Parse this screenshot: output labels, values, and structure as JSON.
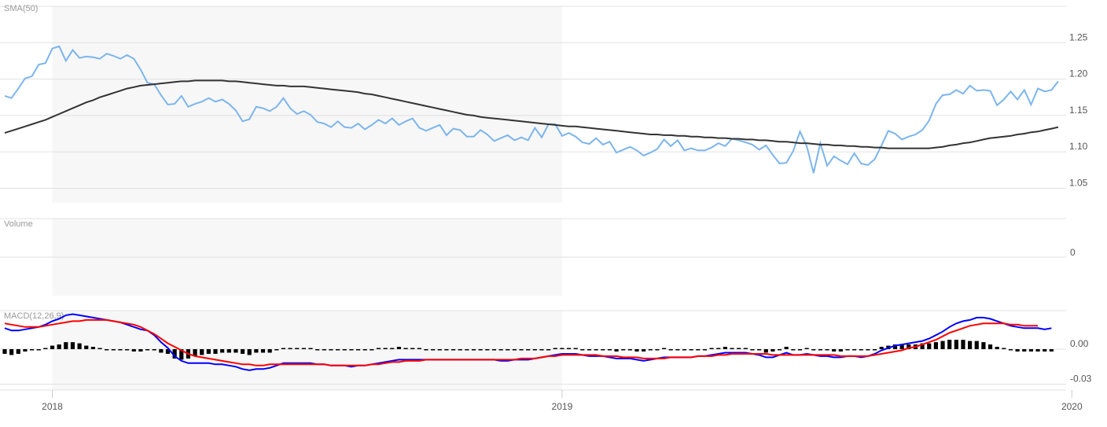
{
  "chart_data": [
    {
      "type": "line",
      "title": "SMA(50)",
      "ylim": [
        1.03,
        1.3
      ],
      "yticks": [
        1.05,
        1.1,
        1.15,
        1.2,
        1.25
      ],
      "ytick_labels": [
        "1.05",
        "1.10",
        "1.15",
        "1.20",
        "1.25"
      ],
      "grid": true,
      "series": [
        {
          "color": "#7cb5ec",
          "values": [
            1.177,
            1.174,
            1.187,
            1.201,
            1.204,
            1.22,
            1.222,
            1.242,
            1.245,
            1.225,
            1.24,
            1.229,
            1.231,
            1.23,
            1.228,
            1.235,
            1.232,
            1.228,
            1.233,
            1.228,
            1.213,
            1.195,
            1.193,
            1.178,
            1.165,
            1.166,
            1.177,
            1.162,
            1.166,
            1.169,
            1.174,
            1.169,
            1.172,
            1.166,
            1.157,
            1.142,
            1.145,
            1.162,
            1.16,
            1.156,
            1.162,
            1.174,
            1.16,
            1.152,
            1.156,
            1.151,
            1.141,
            1.139,
            1.134,
            1.142,
            1.134,
            1.133,
            1.139,
            1.131,
            1.137,
            1.144,
            1.139,
            1.146,
            1.137,
            1.142,
            1.146,
            1.133,
            1.129,
            1.133,
            1.137,
            1.123,
            1.132,
            1.13,
            1.121,
            1.121,
            1.13,
            1.124,
            1.115,
            1.119,
            1.123,
            1.116,
            1.12,
            1.116,
            1.133,
            1.12,
            1.138,
            1.138,
            1.122,
            1.126,
            1.121,
            1.113,
            1.111,
            1.119,
            1.11,
            1.114,
            1.099,
            1.103,
            1.107,
            1.102,
            1.095,
            1.099,
            1.104,
            1.117,
            1.108,
            1.116,
            1.102,
            1.105,
            1.102,
            1.102,
            1.106,
            1.112,
            1.108,
            1.118,
            1.116,
            1.113,
            1.11,
            1.103,
            1.109,
            1.096,
            1.084,
            1.085,
            1.101,
            1.128,
            1.108,
            1.071,
            1.112,
            1.081,
            1.094,
            1.088,
            1.083,
            1.098,
            1.084,
            1.082,
            1.09,
            1.109,
            1.129,
            1.125,
            1.117,
            1.121,
            1.124,
            1.13,
            1.143,
            1.166,
            1.178,
            1.179,
            1.185,
            1.18,
            1.191,
            1.184,
            1.185,
            1.184,
            1.164,
            1.172,
            1.183,
            1.172,
            1.185,
            1.165,
            1.187,
            1.183,
            1.185,
            1.197
          ]
        },
        {
          "color": "#333333",
          "values": [
            1.126,
            1.129,
            1.132,
            1.135,
            1.138,
            1.141,
            1.144,
            1.148,
            1.152,
            1.156,
            1.16,
            1.164,
            1.168,
            1.171,
            1.175,
            1.178,
            1.181,
            1.184,
            1.187,
            1.189,
            1.191,
            1.192,
            1.193,
            1.194,
            1.195,
            1.196,
            1.197,
            1.197,
            1.198,
            1.198,
            1.198,
            1.198,
            1.198,
            1.197,
            1.197,
            1.196,
            1.195,
            1.194,
            1.193,
            1.192,
            1.191,
            1.191,
            1.19,
            1.19,
            1.19,
            1.189,
            1.188,
            1.187,
            1.186,
            1.185,
            1.184,
            1.183,
            1.182,
            1.18,
            1.179,
            1.177,
            1.175,
            1.173,
            1.171,
            1.169,
            1.167,
            1.165,
            1.163,
            1.161,
            1.159,
            1.157,
            1.155,
            1.153,
            1.151,
            1.15,
            1.148,
            1.147,
            1.146,
            1.145,
            1.144,
            1.143,
            1.142,
            1.141,
            1.14,
            1.139,
            1.138,
            1.137,
            1.136,
            1.135,
            1.135,
            1.134,
            1.133,
            1.132,
            1.131,
            1.13,
            1.129,
            1.128,
            1.127,
            1.126,
            1.125,
            1.124,
            1.124,
            1.123,
            1.123,
            1.122,
            1.122,
            1.121,
            1.121,
            1.12,
            1.12,
            1.119,
            1.119,
            1.118,
            1.118,
            1.117,
            1.117,
            1.116,
            1.116,
            1.115,
            1.114,
            1.114,
            1.113,
            1.112,
            1.112,
            1.111,
            1.11,
            1.11,
            1.109,
            1.109,
            1.108,
            1.108,
            1.107,
            1.107,
            1.106,
            1.106,
            1.105,
            1.105,
            1.105,
            1.105,
            1.105,
            1.105,
            1.105,
            1.106,
            1.107,
            1.109,
            1.11,
            1.112,
            1.113,
            1.115,
            1.117,
            1.119,
            1.12,
            1.121,
            1.122,
            1.124,
            1.125,
            1.127,
            1.128,
            1.13,
            1.132,
            1.134
          ]
        }
      ]
    },
    {
      "type": "bar",
      "title": "Volume",
      "yticks": [
        0
      ],
      "ytick_labels": [
        "0"
      ],
      "grid": true,
      "series": []
    },
    {
      "type": "line",
      "title": "MACD(12,26,9)",
      "ylim": [
        -0.035,
        0.033
      ],
      "yticks": [
        -0.03,
        0.0
      ],
      "ytick_labels": [
        "-0.03",
        "0.00"
      ],
      "grid": true,
      "series": [
        {
          "color": "#0000ff",
          "values": [
            0.018,
            0.016,
            0.016,
            0.017,
            0.018,
            0.019,
            0.021,
            0.024,
            0.026,
            0.029,
            0.03,
            0.029,
            0.028,
            0.027,
            0.026,
            0.025,
            0.024,
            0.023,
            0.021,
            0.019,
            0.017,
            0.016,
            0.012,
            0.006,
            0.001,
            -0.006,
            -0.01,
            -0.012,
            -0.012,
            -0.012,
            -0.012,
            -0.013,
            -0.013,
            -0.014,
            -0.015,
            -0.017,
            -0.018,
            -0.017,
            -0.017,
            -0.016,
            -0.014,
            -0.012,
            -0.012,
            -0.012,
            -0.012,
            -0.012,
            -0.013,
            -0.013,
            -0.014,
            -0.014,
            -0.014,
            -0.015,
            -0.014,
            -0.014,
            -0.013,
            -0.012,
            -0.011,
            -0.01,
            -0.009,
            -0.009,
            -0.009,
            -0.009,
            -0.009,
            -0.009,
            -0.009,
            -0.009,
            -0.009,
            -0.009,
            -0.009,
            -0.009,
            -0.009,
            -0.009,
            -0.009,
            -0.01,
            -0.01,
            -0.009,
            -0.009,
            -0.009,
            -0.008,
            -0.007,
            -0.006,
            -0.005,
            -0.004,
            -0.004,
            -0.004,
            -0.005,
            -0.006,
            -0.006,
            -0.006,
            -0.007,
            -0.008,
            -0.008,
            -0.008,
            -0.009,
            -0.01,
            -0.009,
            -0.008,
            -0.007,
            -0.007,
            -0.007,
            -0.007,
            -0.007,
            -0.006,
            -0.006,
            -0.005,
            -0.004,
            -0.003,
            -0.003,
            -0.003,
            -0.003,
            -0.004,
            -0.005,
            -0.007,
            -0.007,
            -0.005,
            -0.003,
            -0.005,
            -0.005,
            -0.004,
            -0.005,
            -0.006,
            -0.006,
            -0.007,
            -0.007,
            -0.006,
            -0.006,
            -0.007,
            -0.006,
            -0.004,
            -0.001,
            0.001,
            0.003,
            0.004,
            0.005,
            0.006,
            0.007,
            0.009,
            0.012,
            0.015,
            0.019,
            0.022,
            0.024,
            0.025,
            0.027,
            0.027,
            0.026,
            0.024,
            0.022,
            0.02,
            0.019,
            0.018,
            0.018,
            0.018,
            0.017,
            0.018
          ]
        },
        {
          "color": "#ff0000",
          "values": [
            0.022,
            0.021,
            0.02,
            0.019,
            0.019,
            0.019,
            0.02,
            0.021,
            0.022,
            0.023,
            0.024,
            0.024,
            0.025,
            0.025,
            0.025,
            0.025,
            0.024,
            0.023,
            0.022,
            0.021,
            0.019,
            0.016,
            0.013,
            0.009,
            0.005,
            0.002,
            -0.001,
            -0.004,
            -0.006,
            -0.007,
            -0.008,
            -0.009,
            -0.01,
            -0.011,
            -0.012,
            -0.013,
            -0.013,
            -0.014,
            -0.014,
            -0.013,
            -0.013,
            -0.013,
            -0.013,
            -0.013,
            -0.013,
            -0.013,
            -0.013,
            -0.013,
            -0.014,
            -0.014,
            -0.014,
            -0.014,
            -0.014,
            -0.014,
            -0.013,
            -0.013,
            -0.012,
            -0.011,
            -0.011,
            -0.01,
            -0.01,
            -0.01,
            -0.009,
            -0.009,
            -0.009,
            -0.009,
            -0.009,
            -0.009,
            -0.009,
            -0.009,
            -0.009,
            -0.009,
            -0.009,
            -0.009,
            -0.009,
            -0.009,
            -0.008,
            -0.008,
            -0.008,
            -0.007,
            -0.006,
            -0.006,
            -0.005,
            -0.005,
            -0.005,
            -0.005,
            -0.005,
            -0.005,
            -0.006,
            -0.006,
            -0.006,
            -0.007,
            -0.007,
            -0.007,
            -0.008,
            -0.008,
            -0.008,
            -0.008,
            -0.007,
            -0.007,
            -0.007,
            -0.007,
            -0.006,
            -0.006,
            -0.006,
            -0.005,
            -0.005,
            -0.004,
            -0.004,
            -0.004,
            -0.004,
            -0.004,
            -0.004,
            -0.005,
            -0.005,
            -0.005,
            -0.005,
            -0.005,
            -0.005,
            -0.005,
            -0.005,
            -0.005,
            -0.005,
            -0.006,
            -0.006,
            -0.006,
            -0.006,
            -0.006,
            -0.005,
            -0.004,
            -0.003,
            -0.002,
            -0.001,
            0.001,
            0.002,
            0.004,
            0.006,
            0.008,
            0.011,
            0.014,
            0.016,
            0.018,
            0.02,
            0.021,
            0.022,
            0.022,
            0.022,
            0.022,
            0.021,
            0.021,
            0.02,
            0.02,
            0.02
          ]
        }
      ],
      "histogram": {
        "color": "#000000",
        "values": [
          -0.004,
          -0.005,
          -0.004,
          -0.002,
          -0.001,
          0.0,
          0.001,
          0.003,
          0.004,
          0.006,
          0.006,
          0.005,
          0.003,
          0.002,
          0.001,
          0.0,
          0.0,
          -0.001,
          -0.001,
          -0.002,
          -0.002,
          -0.0,
          -0.001,
          -0.003,
          -0.004,
          -0.008,
          -0.009,
          -0.008,
          -0.006,
          -0.005,
          -0.004,
          -0.004,
          -0.003,
          -0.003,
          -0.003,
          -0.004,
          -0.005,
          -0.003,
          -0.003,
          -0.003,
          -0.001,
          0.001,
          0.001,
          0.001,
          0.001,
          0.001,
          0.0,
          0.0,
          -0.0,
          -0.0,
          -0.0,
          -0.001,
          0.0,
          0.0,
          0.0,
          0.001,
          0.001,
          0.001,
          0.002,
          0.001,
          0.001,
          0.001,
          0.0,
          0.0,
          0.0,
          0.0,
          0.0,
          0.0,
          0.0,
          0.0,
          0.0,
          0.0,
          0.0,
          -0.001,
          -0.001,
          0.0,
          -0.001,
          -0.001,
          0.0,
          0.0,
          0.0,
          0.001,
          0.001,
          0.001,
          0.001,
          0.0,
          -0.001,
          -0.001,
          0.0,
          -0.001,
          -0.002,
          -0.001,
          -0.001,
          -0.002,
          -0.002,
          -0.001,
          0.0,
          0.001,
          0.0,
          0.0,
          0.0,
          0.0,
          0.0,
          0.0,
          0.001,
          0.001,
          0.002,
          0.001,
          0.001,
          0.001,
          0.0,
          -0.001,
          -0.003,
          -0.002,
          0.0,
          0.002,
          0.0,
          -0.0,
          0.001,
          0.0,
          -0.001,
          -0.001,
          -0.002,
          -0.002,
          -0.001,
          -0.001,
          -0.001,
          -0.001,
          0.0,
          0.002,
          0.003,
          0.004,
          0.004,
          0.004,
          0.004,
          0.005,
          0.005,
          0.006,
          0.007,
          0.008,
          0.008,
          0.008,
          0.007,
          0.007,
          0.006,
          0.004,
          0.002,
          0.001,
          -0.001,
          -0.002,
          -0.002,
          -0.002,
          -0.002,
          -0.002,
          -0.002
        ]
      }
    }
  ],
  "x_axis": {
    "tick_labels": [
      "2018",
      "2019",
      "2020"
    ],
    "tick_index": [
      7,
      82,
      157
    ]
  }
}
